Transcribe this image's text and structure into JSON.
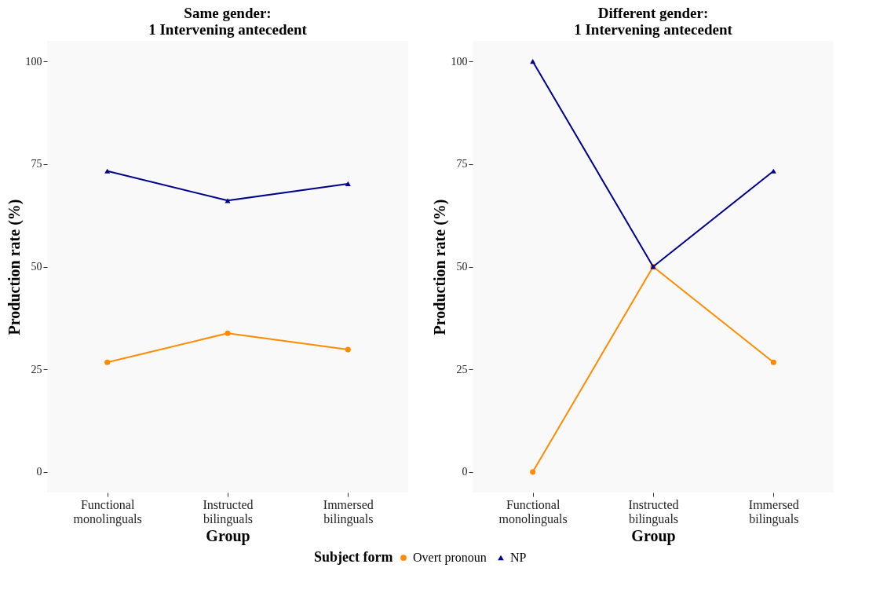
{
  "chart_data": [
    {
      "type": "line",
      "title": "Same gender:\n1 Intervening antecedent",
      "xlabel": "Group",
      "ylabel": "Production rate (%)",
      "categories": [
        "Functional monolinguals",
        "Instructed bilinguals",
        "Immersed bilinguals"
      ],
      "ylim": [
        -5,
        105
      ],
      "yticks": [
        0,
        25,
        50,
        75,
        100
      ],
      "grid": false,
      "legend": "bottom",
      "series": [
        {
          "name": "Overt pronoun",
          "color": "#ff8c00",
          "marker": "circle",
          "values": [
            26.7,
            33.8,
            29.8
          ]
        },
        {
          "name": "NP",
          "color": "#00008b",
          "marker": "triangle",
          "values": [
            73.3,
            66.1,
            70.2
          ]
        }
      ]
    },
    {
      "type": "line",
      "title": "Different gender:\n1 Intervening antecedent",
      "xlabel": "Group",
      "ylabel": "Production rate (%)",
      "categories": [
        "Functional monolinguals",
        "Instructed bilinguals",
        "Immersed bilinguals"
      ],
      "ylim": [
        -5,
        105
      ],
      "yticks": [
        0,
        25,
        50,
        75,
        100
      ],
      "grid": false,
      "legend": "bottom",
      "legend_title": "Subject form",
      "series": [
        {
          "name": "Overt pronoun",
          "color": "#ff8c00",
          "marker": "circle",
          "values": [
            0,
            50,
            26.7
          ]
        },
        {
          "name": "NP",
          "color": "#00008b",
          "marker": "triangle",
          "values": [
            100,
            50,
            73.3
          ]
        }
      ]
    }
  ]
}
